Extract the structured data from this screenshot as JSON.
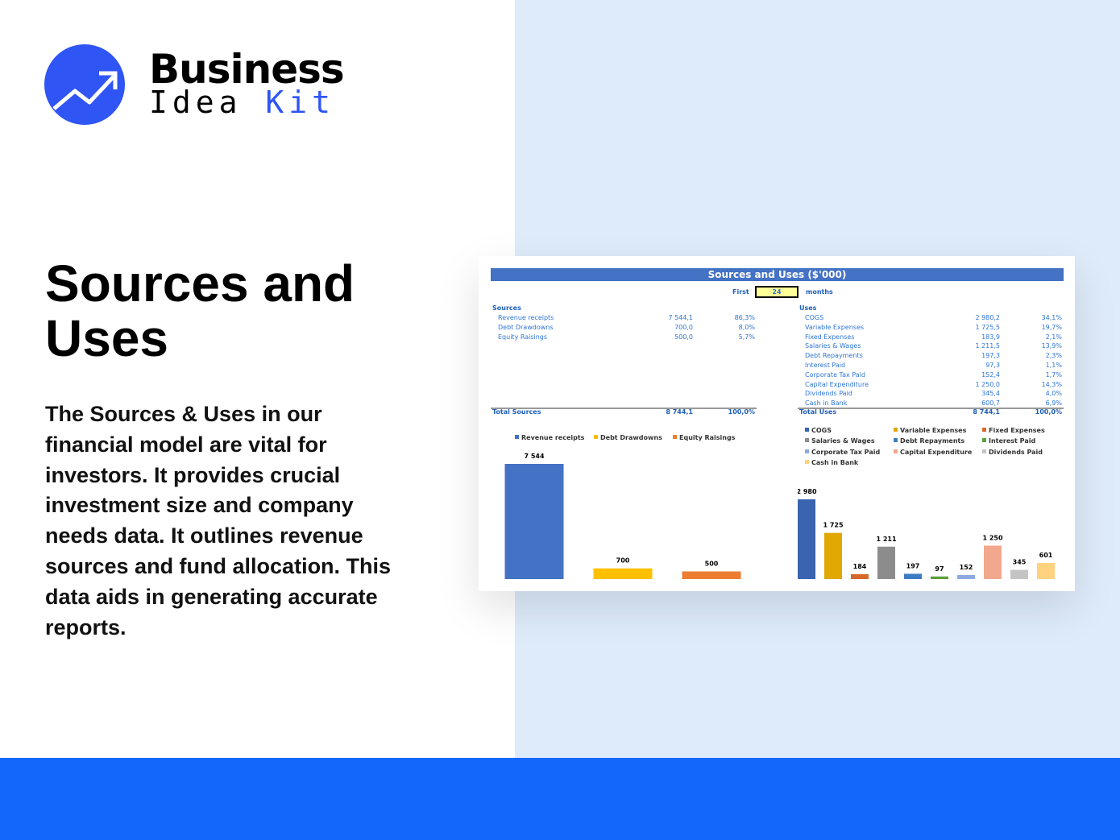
{
  "brand": {
    "line1": "Business",
    "line2a": "Idea",
    "line2b": "Kit",
    "colors": {
      "blue": "#2f55f4"
    }
  },
  "headline": "Sources and Uses",
  "description": "The Sources & Uses in our financial model are vital for investors. It provides crucial investment size and company needs data. It outlines revenue sources and fund allocation. This data aids in generating accurate reports.",
  "sheet": {
    "title": "Sources and Uses ($'000)",
    "period": {
      "prefix": "First",
      "value": "24",
      "suffix": "months"
    },
    "sources": {
      "heading": "Sources",
      "rows": [
        {
          "label": "Revenue receipts",
          "value": "7 544,1",
          "pct": "86,3%"
        },
        {
          "label": "Debt Drawdowns",
          "value": "700,0",
          "pct": "8,0%"
        },
        {
          "label": "Equity Raisings",
          "value": "500,0",
          "pct": "5,7%"
        }
      ],
      "total": {
        "label": "Total Sources",
        "value": "8 744,1",
        "pct": "100,0%"
      }
    },
    "uses": {
      "heading": "Uses",
      "rows": [
        {
          "label": "COGS",
          "value": "2 980,2",
          "pct": "34,1%"
        },
        {
          "label": "Variable Expenses",
          "value": "1 725,5",
          "pct": "19,7%"
        },
        {
          "label": "Fixed Expenses",
          "value": "183,9",
          "pct": "2,1%"
        },
        {
          "label": "Salaries & Wages",
          "value": "1 211,5",
          "pct": "13,9%"
        },
        {
          "label": "Debt Repayments",
          "value": "197,3",
          "pct": "2,3%"
        },
        {
          "label": "Interest Paid",
          "value": "97,3",
          "pct": "1,1%"
        },
        {
          "label": "Corporate Tax Paid",
          "value": "152,4",
          "pct": "1,7%"
        },
        {
          "label": "Capital Expenditure",
          "value": "1 250,0",
          "pct": "14,3%"
        },
        {
          "label": "Dividends Paid",
          "value": "345,4",
          "pct": "4,0%"
        },
        {
          "label": "Cash in Bank",
          "value": "600,7",
          "pct": "6,9%"
        }
      ],
      "total": {
        "label": "Total Uses",
        "value": "8 744,1",
        "pct": "100,0%"
      }
    }
  },
  "chart_data": [
    {
      "type": "bar",
      "legend_placement": "top",
      "grid": false,
      "categories": [
        "Revenue receipts",
        "Debt Drawdowns",
        "Equity Raisings"
      ],
      "values": [
        7544,
        700,
        500
      ],
      "labels": [
        "7 544",
        "700",
        "500"
      ],
      "colors": [
        "#4472c4",
        "#ffc000",
        "#ed7d31"
      ]
    },
    {
      "type": "bar",
      "legend_placement": "top",
      "grid": false,
      "categories": [
        "COGS",
        "Variable Expenses",
        "Fixed Expenses",
        "Salaries & Wages",
        "Debt Repayments",
        "Interest Paid",
        "Corporate Tax Paid",
        "Capital Expenditure",
        "Dividends Paid",
        "Cash in Bank"
      ],
      "values": [
        2980,
        1725,
        184,
        1211,
        197,
        97,
        152,
        1250,
        345,
        601
      ],
      "labels": [
        "2 980",
        "1 725",
        "184",
        "1 211",
        "197",
        "97",
        "152",
        "1 250",
        "345",
        "601"
      ],
      "colors": [
        "#3a63b0",
        "#e0a800",
        "#d8682a",
        "#8c8c8c",
        "#3d7cc4",
        "#5a9e3a",
        "#8fa9e0",
        "#f2a88c",
        "#c4c4c4",
        "#ffd27f"
      ]
    }
  ]
}
